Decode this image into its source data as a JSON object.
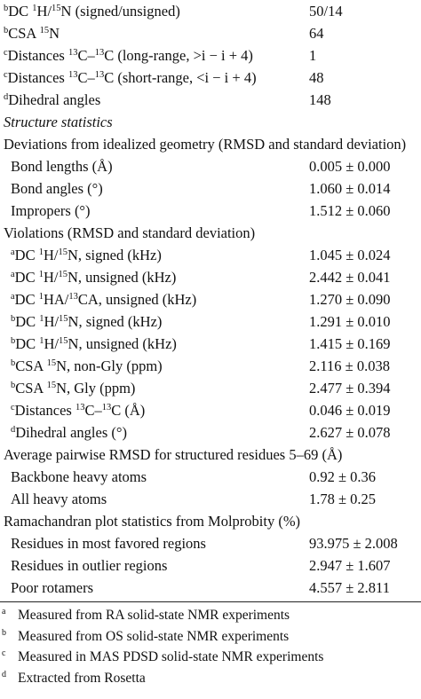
{
  "table": {
    "top_rows": [
      {
        "sup": "b",
        "label_html": "DC <sup>1</sup>H/<sup>15</sup>N (signed/unsigned)",
        "value": "50/14"
      },
      {
        "sup": "b",
        "label_html": "CSA <sup>15</sup>N",
        "value": "64"
      },
      {
        "sup": "c",
        "label_html": "Distances <sup>13</sup>C–<sup>13</sup>C (long-range, &gt;i − i + 4)",
        "value": "1"
      },
      {
        "sup": "c",
        "label_html": "Distances <sup>13</sup>C–<sup>13</sup>C (short-range, &lt;i − i + 4)",
        "value": "48"
      },
      {
        "sup": "d",
        "label_html": "Dihedral angles",
        "value": "148"
      }
    ],
    "structure_statistics_title": "Structure statistics",
    "deviations_title": "Deviations from idealized geometry (RMSD and standard deviation)",
    "deviations": [
      {
        "label": "Bond lengths (Å)",
        "value": "0.005 ± 0.000"
      },
      {
        "label": "Bond angles (°)",
        "value": "1.060 ± 0.014"
      },
      {
        "label": "Impropers (°)",
        "value": "1.512 ± 0.060"
      }
    ],
    "violations_title": "Violations (RMSD and standard deviation)",
    "violations": [
      {
        "sup": "a",
        "label_html": "DC <sup>1</sup>H/<sup>15</sup>N, signed (kHz)",
        "value": "1.045 ± 0.024"
      },
      {
        "sup": "a",
        "label_html": "DC <sup>1</sup>H/<sup>15</sup>N, unsigned (kHz)",
        "value": "2.442 ± 0.041"
      },
      {
        "sup": "a",
        "label_html": "DC <sup>1</sup>HA/<sup>13</sup>CA, unsigned (kHz)",
        "value": "1.270 ± 0.090"
      },
      {
        "sup": "b",
        "label_html": "DC <sup>1</sup>H/<sup>15</sup>N, signed (kHz)",
        "value": "1.291 ± 0.010"
      },
      {
        "sup": "b",
        "label_html": "DC <sup>1</sup>H/<sup>15</sup>N, unsigned (kHz)",
        "value": "1.415 ± 0.169"
      },
      {
        "sup": "b",
        "label_html": "CSA <sup>15</sup>N, non-Gly (ppm)",
        "value": "2.116 ± 0.038"
      },
      {
        "sup": "b",
        "label_html": "CSA <sup>15</sup>N, Gly (ppm)",
        "value": "2.477 ± 0.394"
      },
      {
        "sup": "c",
        "label_html": "Distances <sup>13</sup>C–<sup>13</sup>C (Å)",
        "value": "0.046 ± 0.019"
      },
      {
        "sup": "d",
        "label_html": "Dihedral angles (°)",
        "value": "2.627 ± 0.078"
      }
    ],
    "rmsd_title": "Average pairwise RMSD for structured residues 5–69 (Å)",
    "rmsd": [
      {
        "label": "Backbone heavy atoms",
        "value": "0.92 ± 0.36"
      },
      {
        "label": "All heavy atoms",
        "value": "1.78 ± 0.25"
      }
    ],
    "ramachandran_title": "Ramachandran plot statistics from Molprobity (%)",
    "ramachandran": [
      {
        "label": "Residues in most favored regions",
        "value": "93.975 ± 2.008"
      },
      {
        "label": "Residues in outlier regions",
        "value": "2.947 ± 1.607"
      },
      {
        "label": "Poor rotamers",
        "value": "4.557 ± 2.811"
      }
    ]
  },
  "footnotes": [
    {
      "mark": "a",
      "text": "Measured from RA solid-state NMR experiments"
    },
    {
      "mark": "b",
      "text": "Measured from OS solid-state NMR experiments"
    },
    {
      "mark": "c",
      "text": "Measured in MAS PDSD solid-state NMR experiments"
    },
    {
      "mark": "d",
      "text": "Extracted from Rosetta"
    }
  ]
}
